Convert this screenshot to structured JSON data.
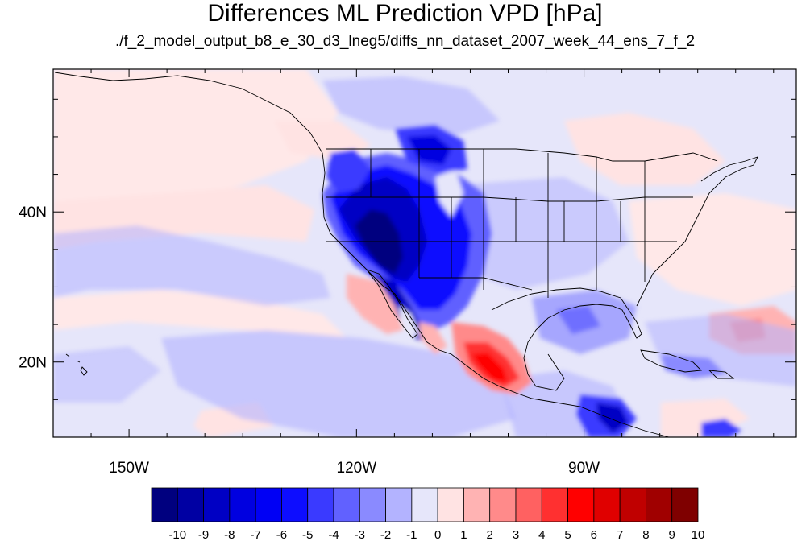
{
  "title": "Differences ML Prediction VPD [hPa]",
  "subtitle": "./f_2_model_output_b8_e_30_d3_lneg5/diffs_nn_dataset_2007_week_44_ens_7_f_2",
  "map": {
    "lon_range": [
      -160,
      -62
    ],
    "lat_range": [
      10,
      59
    ],
    "lon_ticks": [
      {
        "value": -150,
        "label": "150W"
      },
      {
        "value": -120,
        "label": "120W"
      },
      {
        "value": -90,
        "label": "90W"
      }
    ],
    "lat_ticks": [
      {
        "value": 40,
        "label": "40N"
      },
      {
        "value": 20,
        "label": "20N"
      }
    ]
  },
  "colorbar": {
    "labels": [
      "-10",
      "-9",
      "-8",
      "-7",
      "-6",
      "-5",
      "-4",
      "-3",
      "-2",
      "-1",
      "0",
      "1",
      "2",
      "3",
      "4",
      "5",
      "6",
      "7",
      "8",
      "9",
      "10"
    ],
    "colors": [
      "#00007f",
      "#0000a3",
      "#0000c4",
      "#0000e0",
      "#0000f5",
      "#0d0dff",
      "#3a3aff",
      "#6161ff",
      "#8a8aff",
      "#b3b3ff",
      "#e6e6fa",
      "#ffe3e3",
      "#ffb3b3",
      "#ff8a8a",
      "#ff6161",
      "#ff3030",
      "#ff0000",
      "#e00000",
      "#c00000",
      "#a00000",
      "#7f0000"
    ]
  }
}
